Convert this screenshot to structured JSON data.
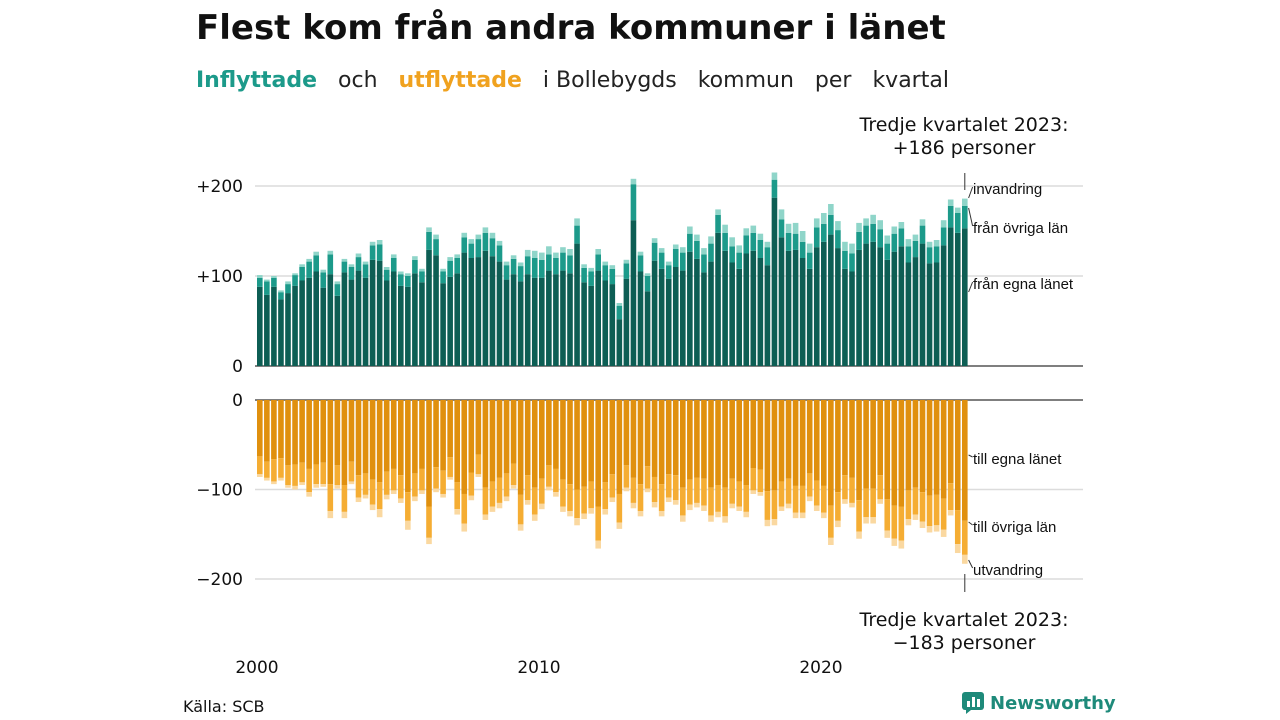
{
  "title": "Flest kom från andra kommuner i länet",
  "subtitle": {
    "in_word": "Inflyttade",
    "and_word": "och",
    "out_word": "utflyttade",
    "rest": [
      "i Bollebygds",
      "kommun",
      "per",
      "kvartal"
    ]
  },
  "source": "Källa: SCB",
  "brand": "Newsworthy",
  "colors": {
    "in_own_county": "#0d5e54",
    "in_other_county": "#1c9a8a",
    "in_immigration": "#8fd5c9",
    "out_own_county": "#e0900e",
    "out_other_county": "#f5ad33",
    "out_emigration": "#fad8a0",
    "subtitle_in": "#1c9a8a",
    "subtitle_out": "#f0a21f"
  },
  "chart_data": {
    "type": "bar",
    "stacked": true,
    "x_axis": {
      "start_year": 2000,
      "quarters_per_year": 4,
      "tick_labels": [
        "2000",
        "2010",
        "2020"
      ]
    },
    "y_axis_top": {
      "ticks": [
        0,
        100,
        200
      ],
      "tick_labels": [
        "0",
        "+100",
        "+200"
      ],
      "range": [
        0,
        215
      ]
    },
    "y_axis_bottom": {
      "ticks": [
        0,
        -100,
        -200
      ],
      "tick_labels": [
        "0",
        "−100",
        "−200"
      ],
      "range": [
        -212,
        0
      ]
    },
    "grid": true,
    "legend_top": [
      "invandring",
      "från övriga län",
      "från egna länet"
    ],
    "legend_bottom": [
      "till egna länet",
      "till övriga län",
      "utvandring"
    ],
    "annotation_top": [
      "Tredje kvartalet 2023:",
      "+186 personer"
    ],
    "annotation_bottom": [
      "Tredje kvartalet 2023:",
      "−183 personer"
    ],
    "inflow": {
      "totals": [
        101,
        96,
        100,
        84,
        94,
        103,
        113,
        119,
        127,
        107,
        128,
        94,
        119,
        113,
        125,
        116,
        138,
        140,
        110,
        124,
        105,
        103,
        122,
        108,
        154,
        146,
        108,
        121,
        124,
        148,
        141,
        146,
        154,
        148,
        139,
        116,
        123,
        115,
        129,
        128,
        126,
        133,
        126,
        132,
        130,
        164,
        113,
        109,
        130,
        116,
        112,
        70,
        118,
        208,
        127,
        103,
        142,
        131,
        116,
        135,
        132,
        155,
        146,
        131,
        144,
        174,
        157,
        143,
        134,
        153,
        156,
        147,
        138,
        215,
        174,
        158,
        159,
        150,
        136,
        164,
        170,
        180,
        161,
        138,
        136,
        159,
        164,
        168,
        162,
        145,
        155,
        160,
        141,
        146,
        163,
        138,
        140,
        162,
        185,
        176,
        186
      ],
      "other_county": [
        10,
        15,
        10,
        8,
        10,
        12,
        15,
        18,
        18,
        17,
        22,
        13,
        12,
        14,
        15,
        15,
        16,
        18,
        12,
        15,
        13,
        12,
        15,
        12,
        20,
        18,
        13,
        18,
        17,
        17,
        16,
        20,
        20,
        20,
        18,
        16,
        17,
        17,
        20,
        22,
        20,
        18,
        18,
        20,
        20,
        20,
        16,
        16,
        18,
        17,
        17,
        15,
        17,
        40,
        18,
        17,
        20,
        18,
        15,
        20,
        20,
        20,
        20,
        20,
        20,
        20,
        20,
        18,
        18,
        20,
        20,
        20,
        20,
        20,
        20,
        20,
        18,
        18,
        18,
        22,
        20,
        22,
        20,
        20,
        20,
        20,
        20,
        20,
        20,
        18,
        20,
        20,
        18,
        18,
        20,
        18,
        18,
        20,
        24,
        22,
        25
      ],
      "immigration": [
        3,
        2,
        2,
        2,
        3,
        2,
        3,
        3,
        4,
        3,
        4,
        3,
        3,
        3,
        4,
        3,
        4,
        5,
        3,
        4,
        3,
        3,
        4,
        3,
        5,
        5,
        3,
        4,
        4,
        5,
        5,
        5,
        6,
        6,
        5,
        4,
        4,
        4,
        7,
        8,
        8,
        9,
        6,
        6,
        7,
        8,
        4,
        4,
        6,
        4,
        4,
        3,
        4,
        6,
        4,
        3,
        5,
        5,
        4,
        5,
        6,
        8,
        7,
        7,
        8,
        6,
        9,
        10,
        8,
        8,
        8,
        7,
        6,
        8,
        11,
        10,
        12,
        12,
        10,
        10,
        12,
        12,
        10,
        10,
        11,
        10,
        8,
        10,
        10,
        9,
        8,
        7,
        8,
        7,
        7,
        6,
        7,
        8,
        7,
        6,
        8
      ]
    },
    "outflow": {
      "totals": [
        86,
        90,
        94,
        90,
        98,
        100,
        95,
        108,
        98,
        97,
        132,
        99,
        132,
        94,
        114,
        110,
        123,
        131,
        111,
        105,
        115,
        145,
        113,
        105,
        161,
        103,
        109,
        89,
        128,
        147,
        112,
        86,
        134,
        125,
        121,
        113,
        99,
        146,
        117,
        135,
        122,
        101,
        108,
        125,
        130,
        140,
        133,
        127,
        166,
        128,
        114,
        144,
        102,
        121,
        130,
        103,
        120,
        130,
        114,
        117,
        136,
        123,
        120,
        124,
        136,
        131,
        137,
        121,
        124,
        131,
        105,
        107,
        141,
        140,
        124,
        121,
        132,
        132,
        113,
        124,
        132,
        162,
        142,
        116,
        120,
        155,
        138,
        138,
        116,
        154,
        163,
        166,
        140,
        134,
        143,
        148,
        147,
        153,
        129,
        171,
        183
      ],
      "other_county": [
        20,
        18,
        25,
        22,
        22,
        24,
        22,
        26,
        22,
        24,
        30,
        22,
        30,
        22,
        25,
        24,
        28,
        30,
        26,
        24,
        26,
        32,
        26,
        24,
        35,
        24,
        26,
        22,
        30,
        33,
        26,
        22,
        30,
        28,
        28,
        26,
        24,
        33,
        28,
        30,
        28,
        24,
        26,
        30,
        30,
        32,
        30,
        30,
        38,
        30,
        26,
        32,
        25,
        28,
        30,
        25,
        28,
        30,
        26,
        28,
        31,
        28,
        28,
        30,
        31,
        30,
        32,
        28,
        28,
        30,
        25,
        25,
        32,
        32,
        28,
        28,
        30,
        30,
        26,
        28,
        30,
        36,
        32,
        27,
        28,
        35,
        32,
        32,
        27,
        35,
        37,
        38,
        32,
        30,
        33,
        34,
        34,
        35,
        30,
        38,
        38
      ],
      "emigration": [
        3,
        3,
        3,
        3,
        3,
        4,
        3,
        5,
        4,
        3,
        8,
        4,
        7,
        3,
        5,
        4,
        6,
        9,
        5,
        4,
        5,
        10,
        5,
        4,
        7,
        4,
        4,
        3,
        6,
        9,
        5,
        3,
        6,
        6,
        6,
        5,
        4,
        7,
        5,
        7,
        6,
        4,
        5,
        6,
        6,
        8,
        6,
        6,
        9,
        6,
        5,
        7,
        4,
        6,
        6,
        4,
        6,
        6,
        5,
        5,
        7,
        6,
        5,
        6,
        7,
        6,
        7,
        5,
        5,
        6,
        4,
        4,
        7,
        7,
        5,
        5,
        6,
        6,
        5,
        6,
        6,
        8,
        7,
        5,
        5,
        8,
        7,
        7,
        5,
        8,
        8,
        9,
        7,
        6,
        7,
        7,
        7,
        8,
        6,
        10,
        10
      ]
    }
  }
}
